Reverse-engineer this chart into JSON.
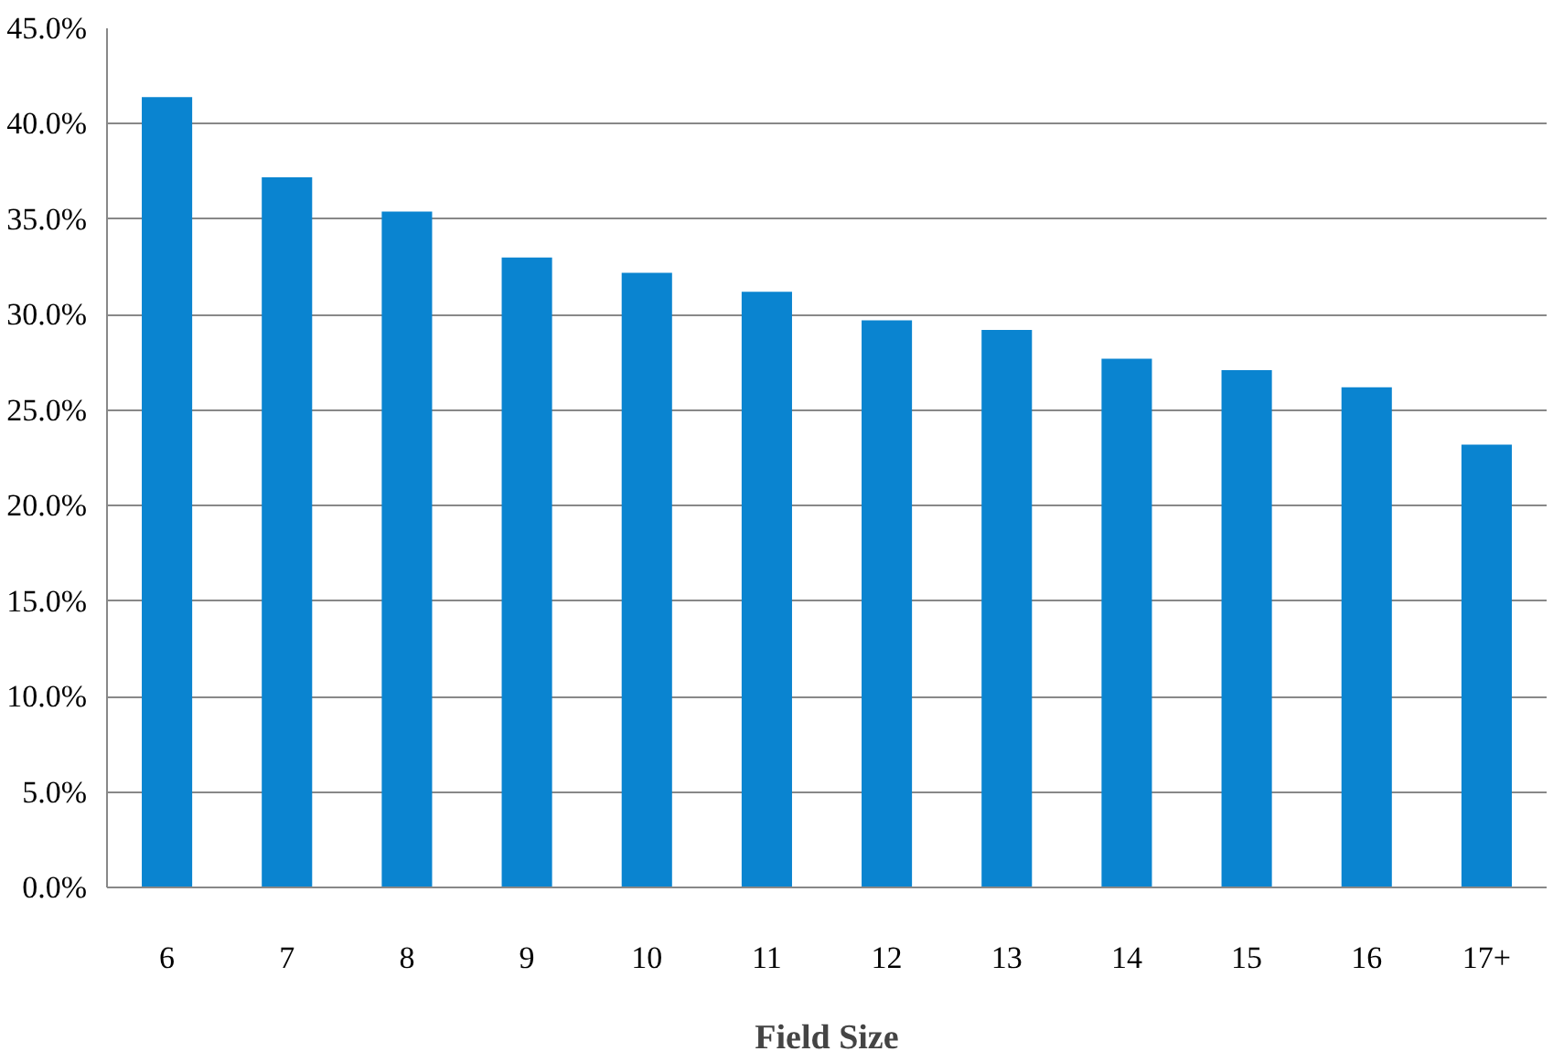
{
  "chart_data": {
    "type": "bar",
    "xlabel": "Field Size",
    "categories": [
      "6",
      "7",
      "8",
      "9",
      "10",
      "11",
      "12",
      "13",
      "14",
      "15",
      "16",
      "17+"
    ],
    "values": [
      41.4,
      37.2,
      35.4,
      33.0,
      32.2,
      31.2,
      29.7,
      29.2,
      27.7,
      27.1,
      26.2,
      23.2
    ],
    "color": "#0a84d0",
    "ylim": [
      0,
      45
    ],
    "yticks": [
      {
        "value": 0,
        "label": "0.0%"
      },
      {
        "value": 5,
        "label": "5.0%"
      },
      {
        "value": 10,
        "label": "10.0%"
      },
      {
        "value": 15,
        "label": "15.0%"
      },
      {
        "value": 20,
        "label": "20.0%"
      },
      {
        "value": 25,
        "label": "25.0%"
      },
      {
        "value": 30,
        "label": "30.0%"
      },
      {
        "value": 35,
        "label": "35.0%"
      },
      {
        "value": 40,
        "label": "40.0%"
      },
      {
        "value": 45,
        "label": "45.0%"
      }
    ],
    "grid": "y"
  }
}
